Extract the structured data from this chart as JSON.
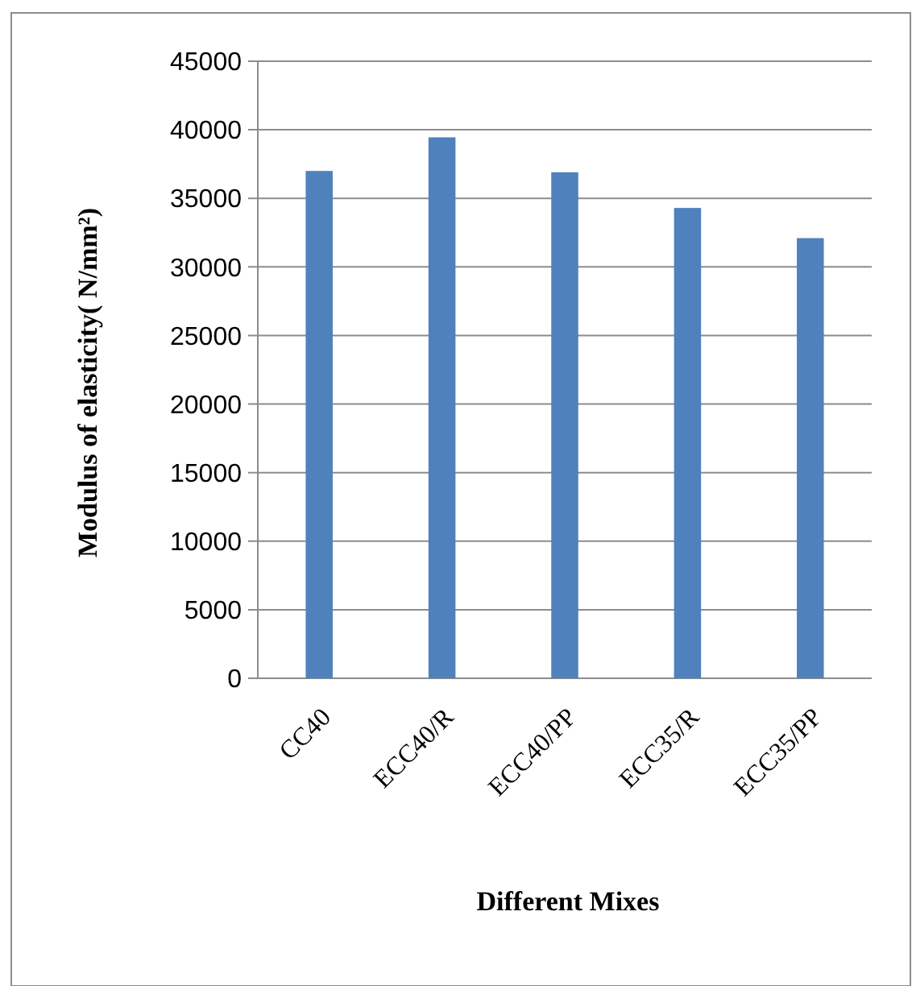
{
  "chart_data": {
    "type": "bar",
    "xlabel": "Different Mixes",
    "ylabel": "Modulus of elasticity( N/mm²)",
    "categories": [
      "CC40",
      "ECC40/R",
      "ECC40/PP",
      "ECC35/R",
      "ECC35/PP"
    ],
    "values": [
      37000,
      39450,
      36900,
      34300,
      32100
    ],
    "color": "#4f81bd",
    "ylim": [
      0,
      45000
    ],
    "yticks": [
      0,
      5000,
      10000,
      15000,
      20000,
      25000,
      30000,
      35000,
      40000,
      45000
    ],
    "grid": "y"
  }
}
